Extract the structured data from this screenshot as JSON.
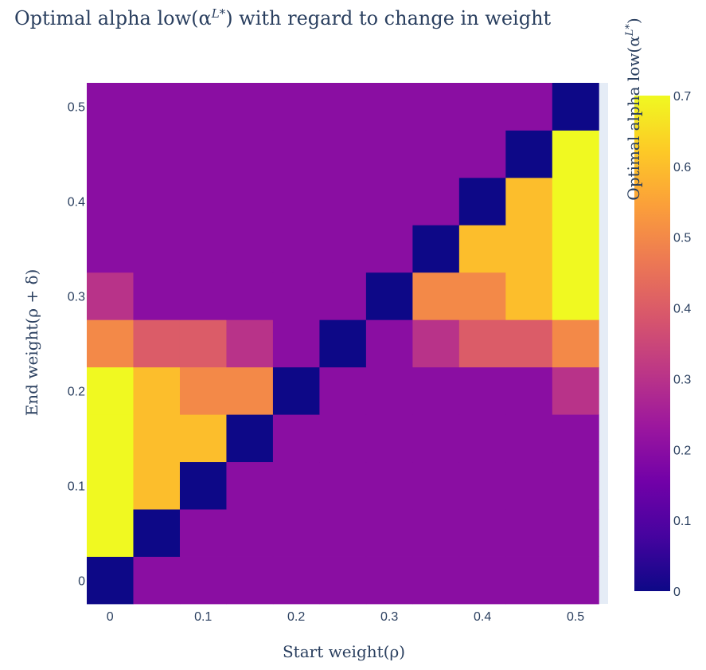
{
  "chart_data": {
    "type": "heatmap",
    "title": "Optimal alpha low(α^{L*}) with regard to change in weight",
    "title_parts": {
      "prefix": "Optimal alpha low(α",
      "sup": "L*",
      "suffix": ") with regard to change in weight"
    },
    "xlabel": "Start weight(ρ)",
    "ylabel": "End weight(ρ + δ)",
    "colorbar_title": "Optimal alpha low(α^{L*})",
    "colorbar_title_parts": {
      "prefix": "Optimal alpha low(α",
      "sup": "L*",
      "suffix": ")"
    },
    "x": [
      0,
      0.05,
      0.1,
      0.15,
      0.2,
      0.25,
      0.3,
      0.35,
      0.4,
      0.45,
      0.5
    ],
    "y": [
      0,
      0.05,
      0.1,
      0.15,
      0.2,
      0.25,
      0.3,
      0.35,
      0.4,
      0.45,
      0.5
    ],
    "xlim": [
      -0.025,
      0.535
    ],
    "ylim": [
      -0.025,
      0.525
    ],
    "x_ticks": [
      {
        "value": 0,
        "label": "0"
      },
      {
        "value": 0.1,
        "label": "0.1"
      },
      {
        "value": 0.2,
        "label": "0.2"
      },
      {
        "value": 0.3,
        "label": "0.3"
      },
      {
        "value": 0.4,
        "label": "0.4"
      },
      {
        "value": 0.5,
        "label": "0.5"
      }
    ],
    "y_ticks": [
      {
        "value": 0,
        "label": "0"
      },
      {
        "value": 0.1,
        "label": "0.1"
      },
      {
        "value": 0.2,
        "label": "0.2"
      },
      {
        "value": 0.3,
        "label": "0.3"
      },
      {
        "value": 0.4,
        "label": "0.4"
      },
      {
        "value": 0.5,
        "label": "0.5"
      }
    ],
    "z": [
      [
        0.0,
        0.2,
        0.2,
        0.2,
        0.2,
        0.2,
        0.2,
        0.2,
        0.2,
        0.2,
        0.2
      ],
      [
        0.7,
        0.0,
        0.2,
        0.2,
        0.2,
        0.2,
        0.2,
        0.2,
        0.2,
        0.2,
        0.2
      ],
      [
        0.7,
        0.6,
        0.0,
        0.2,
        0.2,
        0.2,
        0.2,
        0.2,
        0.2,
        0.2,
        0.2
      ],
      [
        0.7,
        0.6,
        0.6,
        0.0,
        0.2,
        0.2,
        0.2,
        0.2,
        0.2,
        0.2,
        0.2
      ],
      [
        0.7,
        0.6,
        0.5,
        0.5,
        0.0,
        0.2,
        0.2,
        0.2,
        0.2,
        0.2,
        0.3
      ],
      [
        0.5,
        0.4,
        0.4,
        0.3,
        0.2,
        0.0,
        0.2,
        0.3,
        0.4,
        0.4,
        0.5
      ],
      [
        0.3,
        0.2,
        0.2,
        0.2,
        0.2,
        0.2,
        0.0,
        0.5,
        0.5,
        0.6,
        0.7
      ],
      [
        0.2,
        0.2,
        0.2,
        0.2,
        0.2,
        0.2,
        0.2,
        0.0,
        0.6,
        0.6,
        0.7
      ],
      [
        0.2,
        0.2,
        0.2,
        0.2,
        0.2,
        0.2,
        0.2,
        0.2,
        0.0,
        0.6,
        0.7
      ],
      [
        0.2,
        0.2,
        0.2,
        0.2,
        0.2,
        0.2,
        0.2,
        0.2,
        0.2,
        0.0,
        0.7
      ],
      [
        0.2,
        0.2,
        0.2,
        0.2,
        0.2,
        0.2,
        0.2,
        0.2,
        0.2,
        0.2,
        0.0
      ]
    ],
    "zmin": 0,
    "zmax": 0.7,
    "colorscale": [
      [
        0.0,
        "#0d0887"
      ],
      [
        0.111,
        "#46039f"
      ],
      [
        0.222,
        "#7201a8"
      ],
      [
        0.333,
        "#9c179e"
      ],
      [
        0.444,
        "#bd3786"
      ],
      [
        0.556,
        "#d8576b"
      ],
      [
        0.667,
        "#ed7953"
      ],
      [
        0.778,
        "#fb9f3a"
      ],
      [
        0.889,
        "#fdca26"
      ],
      [
        1.0,
        "#f0f921"
      ]
    ],
    "colorbar_ticks": [
      {
        "value": 0,
        "label": "0"
      },
      {
        "value": 0.1,
        "label": "0.1"
      },
      {
        "value": 0.2,
        "label": "0.2"
      },
      {
        "value": 0.3,
        "label": "0.3"
      },
      {
        "value": 0.4,
        "label": "0.4"
      },
      {
        "value": 0.5,
        "label": "0.5"
      },
      {
        "value": 0.6,
        "label": "0.6"
      },
      {
        "value": 0.7,
        "label": "0.7"
      }
    ],
    "plot_background": "#e5ecf6",
    "text_color": "#2a3f5f"
  }
}
